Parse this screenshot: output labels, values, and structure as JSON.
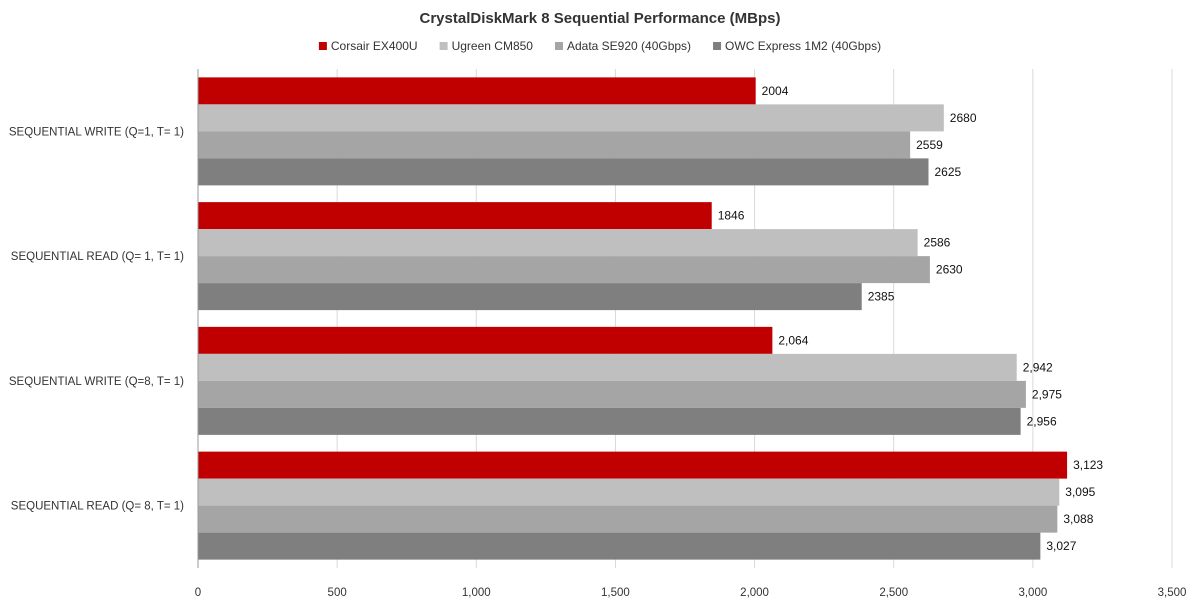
{
  "chart_data": {
    "type": "bar",
    "orientation": "horizontal",
    "title": "CrystalDiskMark 8 Sequential Performance (MBps)",
    "xlabel": "",
    "ylabel": "",
    "xlim": [
      0,
      3500
    ],
    "ticks": [
      {
        "value": 0,
        "label": "0"
      },
      {
        "value": 500,
        "label": "500"
      },
      {
        "value": 1000,
        "label": "1,000"
      },
      {
        "value": 1500,
        "label": "1,500"
      },
      {
        "value": 2000,
        "label": "2,000"
      },
      {
        "value": 2500,
        "label": "2,500"
      },
      {
        "value": 3000,
        "label": "3,000"
      },
      {
        "value": 3500,
        "label": "3,500"
      }
    ],
    "grid": true,
    "legend_position": "top",
    "categories": [
      "SEQUENTIAL WRITE (Q=1, T= 1)",
      "SEQUENTIAL READ (Q= 1, T= 1)",
      "SEQUENTIAL WRITE (Q=8, T= 1)",
      "SEQUENTIAL READ (Q= 8, T= 1)"
    ],
    "series": [
      {
        "name": "Corsair EX400U",
        "color": "#c00000",
        "values": [
          2004,
          1846,
          2064,
          3123
        ],
        "labels": [
          "2004",
          "1846",
          "2,064",
          "3,123"
        ]
      },
      {
        "name": "Ugreen CM850",
        "color": "#bfbfbf",
        "values": [
          2680,
          2586,
          2942,
          3095
        ],
        "labels": [
          "2680",
          "2586",
          "2,942",
          "3,095"
        ]
      },
      {
        "name": "Adata SE920 (40Gbps)",
        "color": "#a5a5a5",
        "values": [
          2559,
          2630,
          2975,
          3088
        ],
        "labels": [
          "2559",
          "2630",
          "2,975",
          "3,088"
        ]
      },
      {
        "name": "OWC Express 1M2 (40Gbps)",
        "color": "#7f7f7f",
        "values": [
          2625,
          2385,
          2956,
          3027
        ],
        "labels": [
          "2625",
          "2385",
          "2,956",
          "3,027"
        ]
      }
    ]
  }
}
